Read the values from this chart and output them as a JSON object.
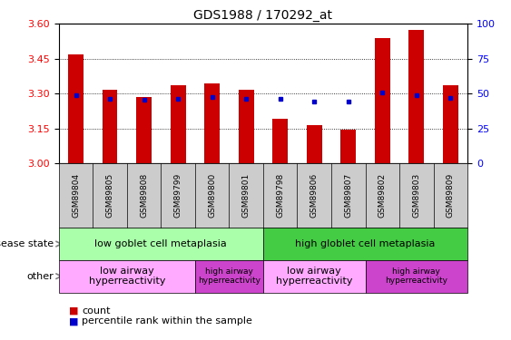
{
  "title": "GDS1988 / 170292_at",
  "samples": [
    "GSM89804",
    "GSM89805",
    "GSM89808",
    "GSM89799",
    "GSM89800",
    "GSM89801",
    "GSM89798",
    "GSM89806",
    "GSM89807",
    "GSM89802",
    "GSM89803",
    "GSM89809"
  ],
  "bar_values": [
    3.47,
    3.315,
    3.285,
    3.335,
    3.345,
    3.315,
    3.19,
    3.165,
    3.145,
    3.54,
    3.575,
    3.335
  ],
  "blue_values": [
    3.293,
    3.278,
    3.273,
    3.278,
    3.283,
    3.278,
    3.278,
    3.265,
    3.265,
    3.303,
    3.293,
    3.28
  ],
  "ylim_left": [
    3.0,
    3.6
  ],
  "ylim_right": [
    0,
    100
  ],
  "yticks_left": [
    3.0,
    3.15,
    3.3,
    3.45,
    3.6
  ],
  "yticks_right": [
    0,
    25,
    50,
    75,
    100
  ],
  "bar_color": "#cc0000",
  "blue_color": "#0000cc",
  "xticklabel_bg": "#cccccc",
  "disease_low_color": "#aaffaa",
  "disease_high_color": "#44cc44",
  "other_low_color": "#ffaaff",
  "other_high_color": "#cc44cc",
  "disease_low_label": "low goblet cell metaplasia",
  "disease_high_label": "high globlet cell metaplasia",
  "other_low_label": "low airway\nhyperreactivity",
  "other_high_label": "high airway\nhyperreactivity",
  "legend_count_label": "count",
  "legend_pct_label": "percentile rank within the sample",
  "legend_count_color": "#cc0000",
  "legend_pct_color": "#0000cc",
  "disease_state_label": "disease state",
  "other_label": "other",
  "n_low_disease": 6,
  "n_high_disease": 6,
  "n_other_low1": 4,
  "n_other_high1": 2,
  "n_other_low2": 3,
  "n_other_high2": 3
}
